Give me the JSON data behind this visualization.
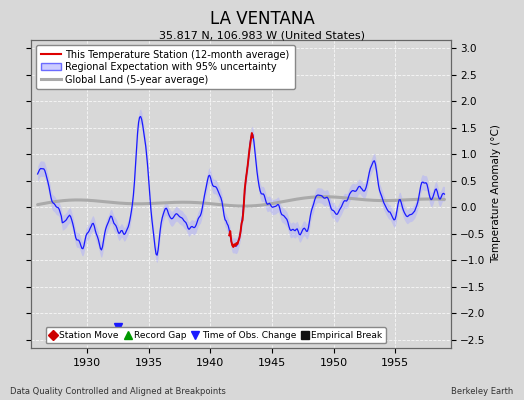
{
  "title": "LA VENTANA",
  "subtitle": "35.817 N, 106.983 W (United States)",
  "ylabel": "Temperature Anomaly (°C)",
  "footer_left": "Data Quality Controlled and Aligned at Breakpoints",
  "footer_right": "Berkeley Earth",
  "xlim": [
    1925.5,
    1959.5
  ],
  "ylim": [
    -2.65,
    3.15
  ],
  "yticks": [
    -2.5,
    -2,
    -1.5,
    -1,
    -0.5,
    0,
    0.5,
    1,
    1.5,
    2,
    2.5,
    3
  ],
  "xticks": [
    1930,
    1935,
    1940,
    1945,
    1950,
    1955
  ],
  "bg_color": "#d8d8d8",
  "plot_bg_color": "#d8d8d8",
  "blue_color": "#1a1aff",
  "blue_fill_color": "#aaaaff",
  "red_color": "#dd0000",
  "gray_color": "#aaaaaa",
  "legend_entries": [
    "This Temperature Station (12-month average)",
    "Regional Expectation with 95% uncertainty",
    "Global Land (5-year average)"
  ],
  "marker_legend": [
    {
      "label": "Station Move",
      "color": "#cc0000",
      "marker": "D"
    },
    {
      "label": "Record Gap",
      "color": "#009900",
      "marker": "^"
    },
    {
      "label": "Time of Obs. Change",
      "color": "#1a1aff",
      "marker": "v"
    },
    {
      "label": "Empirical Break",
      "color": "#111111",
      "marker": "s"
    }
  ],
  "obs_change_year": 1932.5,
  "seed": 42
}
